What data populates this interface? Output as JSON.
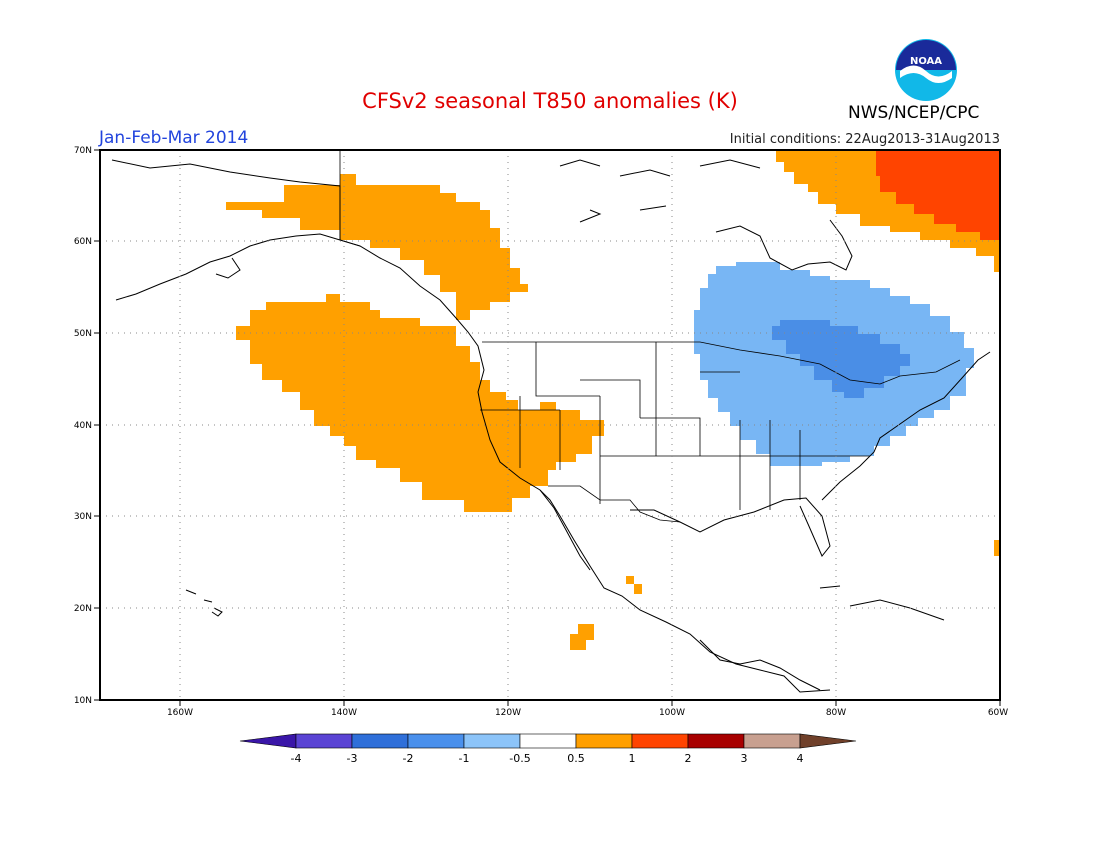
{
  "header": {
    "title": "CFSv2 seasonal T850 anomalies (K)",
    "period": "Jan-Feb-Mar 2014",
    "initial_conditions": "Initial conditions: 22Aug2013-31Aug2013",
    "agency": "NWS/NCEP/CPC",
    "logo_text": "NOAA"
  },
  "map": {
    "region": "North America",
    "lon_range": [
      -175,
      -60
    ],
    "lat_range": [
      10,
      70
    ],
    "lat_labels": [
      "70N",
      "60N",
      "50N",
      "40N",
      "30N",
      "20N",
      "10N"
    ],
    "lon_labels": [
      "160W",
      "140W",
      "120W",
      "100W",
      "80W",
      "60W"
    ],
    "anomaly_regions": [
      {
        "name": "Gulf of Alaska / Alaska warm anomaly",
        "category": "0.5 to 1"
      },
      {
        "name": "Northeast Pacific / US West Coast warm anomaly",
        "category": "0.5 to 1"
      },
      {
        "name": "Great Basin / Four Corners warm anomaly",
        "category": "0.5 to 1"
      },
      {
        "name": "Greenland / Baffin warm anomaly",
        "category": "0.5 to 1"
      },
      {
        "name": "Greenland strong warm anomaly",
        "category": "1 to 2"
      },
      {
        "name": "Great Lakes / Northeast cool anomaly",
        "category": "-1 to -0.5"
      },
      {
        "name": "Great Lakes core cool anomaly",
        "category": "-2 to -1"
      }
    ]
  },
  "colorbar": {
    "labels": [
      "-4",
      "-3",
      "-2",
      "-1",
      "-0.5",
      "0.5",
      "1",
      "2",
      "3",
      "4"
    ],
    "colors": [
      "#3a16a8",
      "#5a44d4",
      "#2f6fd9",
      "#4a90ec",
      "#8cc4f9",
      "#ffffff",
      "#ff9f00",
      "#ff4400",
      "#a80000",
      "#c8a090",
      "#70402a"
    ],
    "colors_ordered_desc": "low to high"
  }
}
